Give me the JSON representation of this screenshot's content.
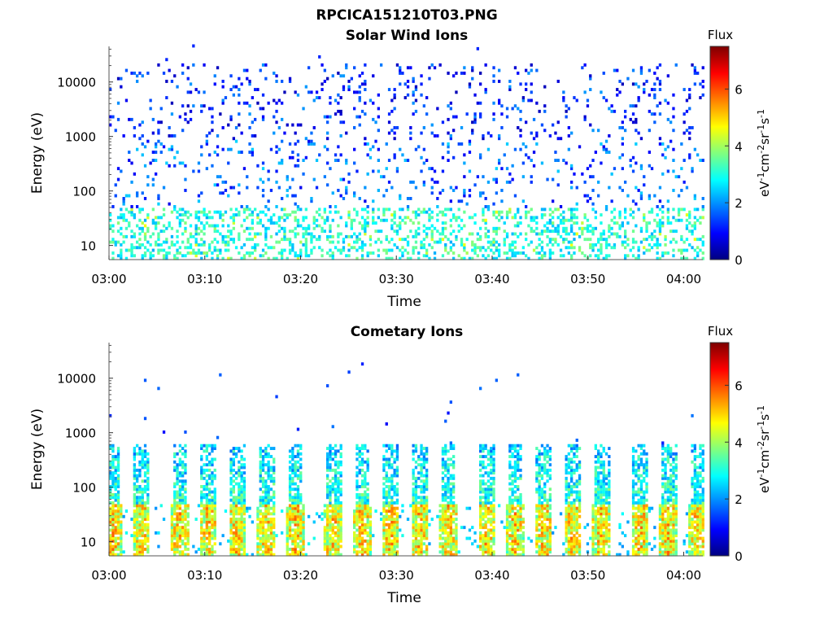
{
  "figure_title": "RPCICA151210T03.PNG",
  "colorbar": {
    "title": "Flux",
    "ticks": [
      "0",
      "2",
      "4",
      "6"
    ],
    "label_parts": [
      "eV",
      "-1",
      "cm",
      "-2",
      "sr",
      "-1",
      "s",
      "-1"
    ],
    "range": [
      0,
      7.5
    ],
    "colormap": "jet",
    "colors": [
      "#00008f",
      "#0000ff",
      "#00ffff",
      "#ffff00",
      "#ff0000",
      "#800000"
    ]
  },
  "chart_data": [
    {
      "type": "heatmap",
      "title": "Solar Wind Ions",
      "xlabel": "Time",
      "ylabel": "Energy (eV)",
      "xticks": [
        "03:00",
        "03:10",
        "03:20",
        "03:30",
        "03:40",
        "03:50",
        "04:00"
      ],
      "yticks": [
        "10",
        "100",
        "1000",
        "10000"
      ],
      "x_range": [
        "03:00",
        "04:02"
      ],
      "y_range_eV": [
        5.5,
        45000
      ],
      "y_scale": "log",
      "description_of_values": "Sparse low flux (about 1-3) scattered from ~30 eV to ~15000 eV; moderate flux (about 3-4.5) concentrated below ~50 eV",
      "approx_flux_range": [
        0.5,
        4.5
      ]
    },
    {
      "type": "heatmap",
      "title": "Cometary Ions",
      "xlabel": "Time",
      "ylabel": "Energy (eV)",
      "xticks": [
        "03:00",
        "03:10",
        "03:20",
        "03:30",
        "03:40",
        "03:50",
        "04:00"
      ],
      "yticks": [
        "10",
        "100",
        "1000",
        "10000"
      ],
      "x_range": [
        "03:00",
        "04:02"
      ],
      "y_range_eV": [
        5.5,
        45000
      ],
      "y_scale": "log",
      "burst_times": [
        "03:00",
        "03:03",
        "03:07",
        "03:10",
        "03:13",
        "03:16",
        "03:19",
        "03:23",
        "03:26",
        "03:29",
        "03:32",
        "03:35",
        "03:39",
        "03:42",
        "03:45",
        "03:48",
        "03:51",
        "03:55",
        "03:58",
        "04:01"
      ],
      "description_of_values": "Periodic vertical bursts reaching ~500 eV; peak flux (about 5-6.5) near 10-40 eV; isolated low-flux points up to ~15000 eV",
      "approx_flux_range": [
        1,
        6.5
      ]
    }
  ]
}
